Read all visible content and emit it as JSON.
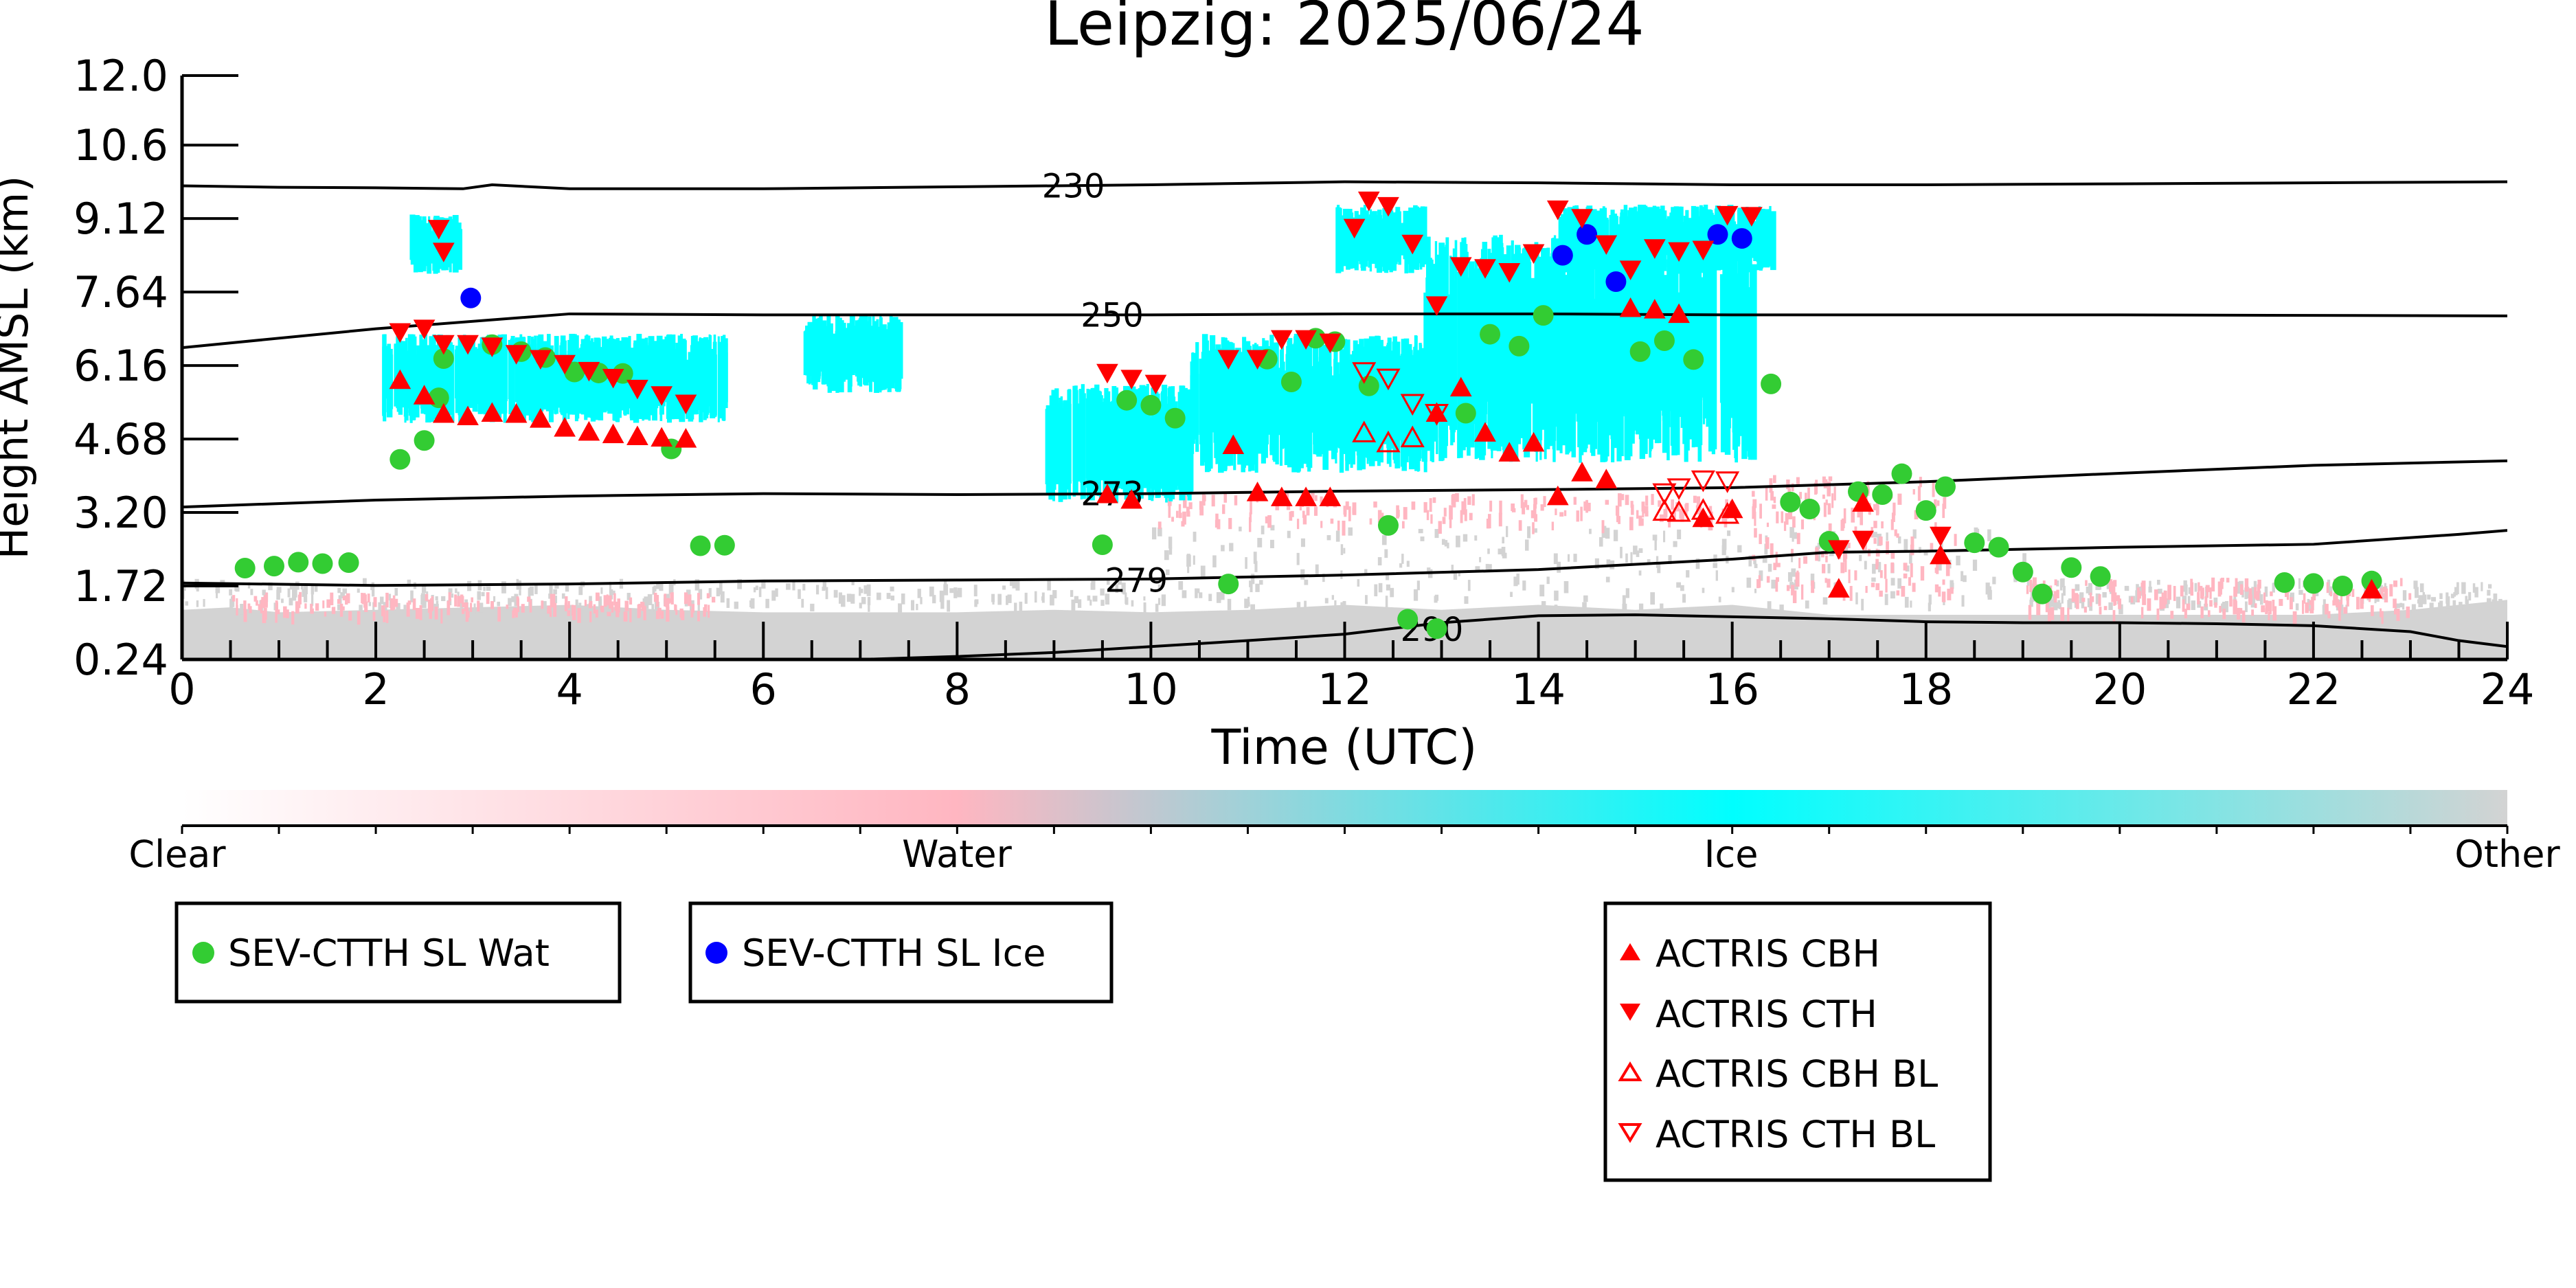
{
  "chart_data": {
    "type": "scatter",
    "title": "Leipzig: 2025/06/24",
    "xlabel": "Time (UTC)",
    "ylabel": "Height AMSL (km)",
    "xlim": [
      0,
      24
    ],
    "ylim": [
      0.24,
      12.0
    ],
    "xticks": [
      "0",
      "2",
      "4",
      "6",
      "8",
      "10",
      "12",
      "14",
      "16",
      "18",
      "20",
      "22",
      "24"
    ],
    "xtick_values": [
      0,
      2,
      4,
      6,
      8,
      10,
      12,
      14,
      16,
      18,
      20,
      22,
      24
    ],
    "yticks": [
      "0.24",
      "1.72",
      "3.20",
      "4.68",
      "6.16",
      "7.64",
      "9.12",
      "10.6",
      "12.0"
    ],
    "ytick_values": [
      0.24,
      1.72,
      3.2,
      4.68,
      6.16,
      7.64,
      9.12,
      10.6,
      12.0
    ],
    "background_classes": {
      "colorbar_labels": [
        "Clear",
        "Water",
        "Ice",
        "Other"
      ],
      "colors": {
        "clear": "#ffffff",
        "water": "#ffb6c1",
        "ice": "#00ffff",
        "other": "#d3d3d3"
      },
      "other_layer": [
        [
          0,
          1.0
        ],
        [
          0.5,
          1.05
        ],
        [
          1,
          0.95
        ],
        [
          2,
          1.0
        ],
        [
          3,
          1.05
        ],
        [
          4,
          1.1
        ],
        [
          5,
          1.0
        ],
        [
          6,
          0.95
        ],
        [
          7,
          0.95
        ],
        [
          8,
          0.95
        ],
        [
          9,
          1.0
        ],
        [
          10,
          0.95
        ],
        [
          11,
          1.0
        ],
        [
          12,
          1.1
        ],
        [
          13,
          1.0
        ],
        [
          14,
          1.1
        ],
        [
          15,
          1.0
        ],
        [
          16,
          1.1
        ],
        [
          17,
          0.9
        ],
        [
          18,
          0.9
        ],
        [
          19,
          0.9
        ],
        [
          20,
          0.9
        ],
        [
          21,
          0.9
        ],
        [
          22,
          0.9
        ],
        [
          23,
          1.0
        ],
        [
          24,
          1.2
        ]
      ],
      "ice_regions": [
        {
          "x": [
            2.05,
            5.6
          ],
          "y": [
            5.0,
            6.8
          ]
        },
        {
          "x": 2.6,
          "y": [
            8.0,
            9.2
          ]
        },
        {
          "x": [
            8.9,
            10.4
          ],
          "y": [
            3.4,
            5.8
          ]
        },
        {
          "x": [
            10.4,
            12.9
          ],
          "y": [
            4.0,
            6.8
          ]
        },
        {
          "x": [
            11.9,
            12.8
          ],
          "y": [
            8.0,
            9.4
          ]
        },
        {
          "x": [
            12.8,
            16.2
          ],
          "y": [
            4.2,
            8.8
          ]
        },
        {
          "x": [
            14.2,
            16.4
          ],
          "y": [
            8.0,
            9.4
          ]
        },
        {
          "x": [
            6.4,
            7.4
          ],
          "y": [
            5.6,
            7.2
          ]
        }
      ]
    },
    "contours": [
      {
        "label": "230",
        "label_at": [
          9.2,
          9.78
        ],
        "x": [
          0,
          1,
          2,
          2.9,
          3.2,
          4,
          6,
          8,
          10,
          12,
          14,
          16,
          18,
          20,
          22,
          24
        ],
        "y": [
          9.78,
          9.75,
          9.74,
          9.72,
          9.8,
          9.72,
          9.72,
          9.76,
          9.8,
          9.86,
          9.84,
          9.8,
          9.8,
          9.82,
          9.84,
          9.86
        ]
      },
      {
        "label": "250",
        "label_at": [
          9.6,
          7.18
        ],
        "x": [
          0,
          2,
          4,
          6,
          8,
          10,
          12,
          14,
          16,
          18,
          20,
          22,
          24
        ],
        "y": [
          6.52,
          6.9,
          7.2,
          7.18,
          7.18,
          7.18,
          7.2,
          7.2,
          7.18,
          7.18,
          7.18,
          7.17,
          7.16
        ]
      },
      {
        "label": "273",
        "label_at": [
          9.6,
          3.58
        ],
        "x": [
          0,
          2,
          4,
          6,
          8,
          10,
          12,
          14,
          16,
          18,
          20,
          22,
          24
        ],
        "y": [
          3.31,
          3.45,
          3.53,
          3.58,
          3.56,
          3.58,
          3.63,
          3.66,
          3.7,
          3.82,
          3.99,
          4.15,
          4.24
        ]
      },
      {
        "label": "279",
        "label_at": [
          9.85,
          1.84
        ],
        "x": [
          0,
          2,
          4,
          6,
          8,
          10,
          12,
          14,
          16,
          17,
          18,
          20,
          22,
          23.5,
          24
        ],
        "y": [
          1.78,
          1.73,
          1.76,
          1.82,
          1.84,
          1.86,
          1.94,
          2.05,
          2.26,
          2.4,
          2.42,
          2.5,
          2.56,
          2.76,
          2.84
        ]
      },
      {
        "label": "290",
        "label_at": [
          12.9,
          0.85
        ],
        "x": [
          7.0,
          8,
          9,
          10,
          11,
          12,
          13,
          14,
          15,
          16,
          17,
          18,
          19,
          20,
          21,
          22,
          23,
          23.5,
          24
        ],
        "y": [
          0.24,
          0.3,
          0.38,
          0.5,
          0.62,
          0.75,
          0.98,
          1.12,
          1.14,
          1.1,
          1.06,
          1.0,
          0.98,
          0.98,
          0.96,
          0.92,
          0.8,
          0.62,
          0.5
        ]
      }
    ],
    "series": [
      {
        "name": "SEV-CTTH SL Wat",
        "marker": "circle",
        "color": "#33cc33",
        "x": [
          0.65,
          0.95,
          1.2,
          1.45,
          1.72,
          2.25,
          2.5,
          2.65,
          2.7,
          3.2,
          3.5,
          3.75,
          4.05,
          4.3,
          4.55,
          5.05,
          5.35,
          5.6,
          9.5,
          9.75,
          10.0,
          10.25,
          10.8,
          11.2,
          11.45,
          11.7,
          11.9,
          12.25,
          12.45,
          12.65,
          12.95,
          13.25,
          13.5,
          13.8,
          14.05,
          15.05,
          15.3,
          15.6,
          16.4,
          16.6,
          16.8,
          17.0,
          17.3,
          17.55,
          17.75,
          18.0,
          18.2,
          18.5,
          18.75,
          19.0,
          19.2,
          19.5,
          19.8,
          21.7,
          22.0,
          22.3,
          22.6
        ],
        "y": [
          2.08,
          2.12,
          2.2,
          2.17,
          2.19,
          4.27,
          4.65,
          5.51,
          6.3,
          6.58,
          6.44,
          6.32,
          6.03,
          6.01,
          6.0,
          4.48,
          2.53,
          2.54,
          2.55,
          5.46,
          5.36,
          5.1,
          1.76,
          6.29,
          5.83,
          6.71,
          6.64,
          5.75,
          2.94,
          1.05,
          0.86,
          5.2,
          6.79,
          6.55,
          7.17,
          6.44,
          6.66,
          6.28,
          5.79,
          3.41,
          3.27,
          2.62,
          3.62,
          3.56,
          3.98,
          3.24,
          3.72,
          2.59,
          2.5,
          2.0,
          1.56,
          2.09,
          1.91,
          1.79,
          1.77,
          1.72,
          1.82
        ]
      },
      {
        "name": "SEV-CTTH SL Ice",
        "marker": "circle",
        "color": "#0000ff",
        "x": [
          2.98,
          14.25,
          14.5,
          14.8,
          15.85,
          16.1
        ],
        "y": [
          7.52,
          8.38,
          8.8,
          7.85,
          8.8,
          8.72
        ]
      },
      {
        "name": "ACTRIS CBH",
        "marker": "triangle-up",
        "color": "#ff0000",
        "filled": true,
        "x": [
          2.25,
          2.5,
          2.7,
          2.95,
          3.2,
          3.45,
          3.7,
          3.95,
          4.2,
          4.45,
          4.7,
          4.95,
          5.2,
          9.55,
          9.8,
          10.85,
          11.1,
          11.35,
          11.6,
          11.85,
          12.95,
          13.2,
          13.45,
          13.7,
          13.95,
          14.2,
          14.45,
          14.7,
          14.95,
          15.2,
          15.45,
          15.7,
          16.0,
          17.1,
          17.35,
          18.15,
          22.6
        ],
        "y": [
          5.86,
          5.55,
          5.18,
          5.13,
          5.2,
          5.18,
          5.08,
          4.9,
          4.82,
          4.77,
          4.73,
          4.7,
          4.68,
          3.56,
          3.45,
          4.55,
          3.6,
          3.5,
          3.5,
          3.5,
          5.2,
          5.71,
          4.8,
          4.4,
          4.6,
          3.52,
          4.0,
          3.86,
          7.31,
          7.28,
          7.19,
          3.08,
          3.26,
          1.66,
          3.39,
          2.33,
          1.64
        ]
      },
      {
        "name": "ACTRIS CTH",
        "marker": "triangle-down",
        "color": "#ff0000",
        "filled": true,
        "x": [
          2.25,
          2.5,
          2.7,
          2.95,
          3.2,
          3.45,
          3.7,
          3.95,
          4.2,
          4.45,
          4.7,
          4.95,
          5.2,
          2.65,
          2.7,
          9.55,
          9.8,
          10.05,
          10.8,
          11.1,
          11.35,
          11.6,
          11.85,
          12.1,
          12.25,
          12.45,
          12.7,
          12.95,
          13.2,
          13.45,
          13.7,
          13.95,
          14.2,
          14.45,
          14.7,
          14.95,
          15.2,
          15.45,
          15.7,
          15.95,
          16.2,
          17.1,
          17.35,
          18.15
        ],
        "y": [
          6.84,
          6.91,
          6.6,
          6.6,
          6.55,
          6.4,
          6.3,
          6.2,
          6.06,
          5.92,
          5.7,
          5.57,
          5.4,
          8.92,
          8.46,
          6.02,
          5.9,
          5.8,
          6.3,
          6.3,
          6.7,
          6.7,
          6.63,
          8.94,
          9.49,
          9.38,
          8.62,
          7.38,
          8.17,
          8.13,
          8.05,
          8.43,
          9.31,
          9.14,
          8.61,
          8.1,
          8.53,
          8.47,
          8.5,
          9.2,
          9.18,
          2.47,
          2.66,
          2.74
        ]
      },
      {
        "name": "ACTRIS CBH BL",
        "marker": "triangle-up",
        "color": "#ff0000",
        "filled": false,
        "x": [
          12.2,
          12.45,
          12.7,
          15.3,
          15.45,
          15.7,
          15.95
        ],
        "y": [
          4.8,
          4.6,
          4.7,
          3.22,
          3.2,
          3.24,
          3.16
        ]
      },
      {
        "name": "ACTRIS CTH BL",
        "marker": "triangle-down",
        "color": "#ff0000",
        "filled": false,
        "x": [
          12.2,
          12.45,
          12.7,
          12.95,
          15.3,
          15.45,
          15.7,
          15.95
        ],
        "y": [
          6.04,
          5.91,
          5.4,
          5.2,
          3.6,
          3.7,
          3.86,
          3.84
        ]
      }
    ],
    "legend_boxes": [
      {
        "entries": [
          "SEV-CTTH SL Wat"
        ],
        "placement": "below-left"
      },
      {
        "entries": [
          "SEV-CTTH SL Ice"
        ],
        "placement": "below-center-left"
      },
      {
        "entries": [
          "ACTRIS CBH",
          "ACTRIS CTH",
          "ACTRIS CBH BL",
          "ACTRIS CTH BL"
        ],
        "placement": "below-right"
      }
    ]
  }
}
